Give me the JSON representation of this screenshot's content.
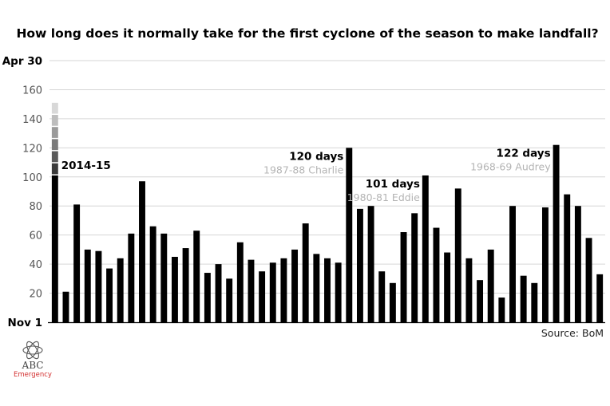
{
  "chart_data": {
    "type": "bar",
    "title": "How long does it normally take for the first cyclone of the season to make landfall?",
    "xlabel": "",
    "ylabel": "",
    "ylim": [
      0,
      180
    ],
    "y_ticks": [
      {
        "value": 180,
        "label": "Apr 30",
        "strong": true
      },
      {
        "value": 160,
        "label": "160",
        "strong": false
      },
      {
        "value": 140,
        "label": "140",
        "strong": false
      },
      {
        "value": 120,
        "label": "120",
        "strong": false
      },
      {
        "value": 100,
        "label": "100",
        "strong": false
      },
      {
        "value": 80,
        "label": "80",
        "strong": false
      },
      {
        "value": 60,
        "label": "60",
        "strong": false
      },
      {
        "value": 40,
        "label": "40",
        "strong": false
      },
      {
        "value": 20,
        "label": "20",
        "strong": false
      },
      {
        "value": 0,
        "label": "Nov 1",
        "strong": true
      }
    ],
    "grid": true,
    "values": [
      101,
      21,
      81,
      50,
      49,
      37,
      44,
      61,
      97,
      66,
      61,
      45,
      51,
      63,
      34,
      40,
      30,
      55,
      43,
      35,
      41,
      44,
      50,
      68,
      47,
      44,
      41,
      120,
      78,
      80,
      35,
      27,
      62,
      75,
      101,
      65,
      48,
      92,
      44,
      29,
      50,
      17,
      80,
      32,
      27,
      79,
      122,
      88,
      80,
      58,
      33
    ],
    "highlight_index": 0,
    "highlight_gradient": [
      "#d8d8d8",
      "#bdbdbd",
      "#9a9a9a",
      "#7a7a7a",
      "#5a5a5a",
      "#3a3a3a"
    ],
    "bar_color": "#000000",
    "annotations": [
      {
        "bar_index": 0,
        "label": "2014-15",
        "sublabel": "",
        "value": 101
      },
      {
        "bar_index": 27,
        "label": "120 days",
        "sublabel": "1987-88 Charlie",
        "value": 120
      },
      {
        "bar_index": 34,
        "label": "101 days",
        "sublabel": "1980-81 Eddie",
        "value": 101
      },
      {
        "bar_index": 46,
        "label": "122 days",
        "sublabel": "1968-69 Audrey",
        "value": 122
      }
    ],
    "source": "Source: BoM"
  },
  "logo": {
    "text": "ABC",
    "subtext": "Emergency",
    "icon": "abc-lissajous-icon"
  }
}
